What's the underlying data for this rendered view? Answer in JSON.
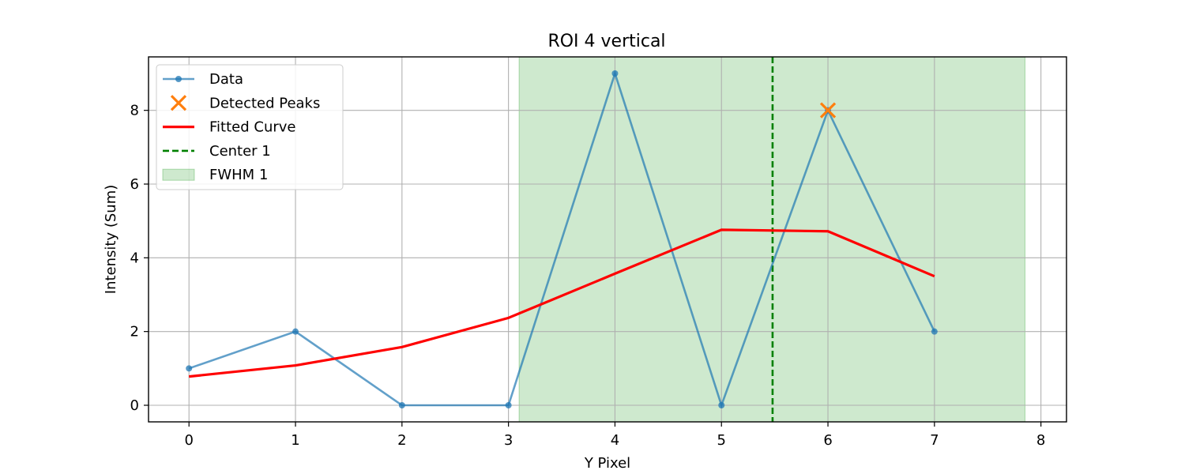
{
  "chart_data": {
    "type": "line",
    "title": "ROI 4 vertical",
    "xlabel": "Y Pixel",
    "ylabel": "Intensity (Sum)",
    "xlim": [
      -0.38,
      8.24
    ],
    "ylim": [
      -0.45,
      9.45
    ],
    "xticks": [
      0,
      1,
      2,
      3,
      4,
      5,
      6,
      7,
      8
    ],
    "yticks": [
      0,
      2,
      4,
      6,
      8
    ],
    "grid": true,
    "legend_position": "top-left",
    "series": [
      {
        "name": "Data",
        "kind": "line-markers",
        "color": "#1f77b4",
        "x": [
          0,
          1,
          2,
          3,
          4,
          5,
          6,
          7
        ],
        "y": [
          1,
          2,
          0,
          0,
          9,
          0,
          8,
          2
        ]
      },
      {
        "name": "Detected Peaks",
        "kind": "scatter-x",
        "color": "#ff7f0e",
        "x": [
          6
        ],
        "y": [
          8
        ]
      },
      {
        "name": "Fitted Curve",
        "kind": "line",
        "color": "#ff0000",
        "x": [
          0,
          1,
          2,
          3,
          4,
          5,
          6,
          7
        ],
        "y": [
          0.78,
          1.08,
          1.58,
          2.37,
          3.57,
          4.76,
          4.72,
          3.5
        ]
      }
    ],
    "annotations": [
      {
        "name": "Center 1",
        "kind": "vline-dashed",
        "color": "#008000",
        "x": 5.48
      },
      {
        "name": "FWHM 1",
        "kind": "vspan",
        "color": "#2ca02c",
        "x0": 3.1,
        "x1": 7.85
      }
    ],
    "legend": [
      {
        "label": "Data",
        "kind": "line-markers",
        "color": "#1f77b4"
      },
      {
        "label": "Detected Peaks",
        "kind": "scatter-x",
        "color": "#ff7f0e"
      },
      {
        "label": "Fitted Curve",
        "kind": "line",
        "color": "#ff0000"
      },
      {
        "label": "Center 1",
        "kind": "dashed",
        "color": "#008000"
      },
      {
        "label": "FWHM 1",
        "kind": "patch",
        "color": "#2ca02c"
      }
    ]
  }
}
